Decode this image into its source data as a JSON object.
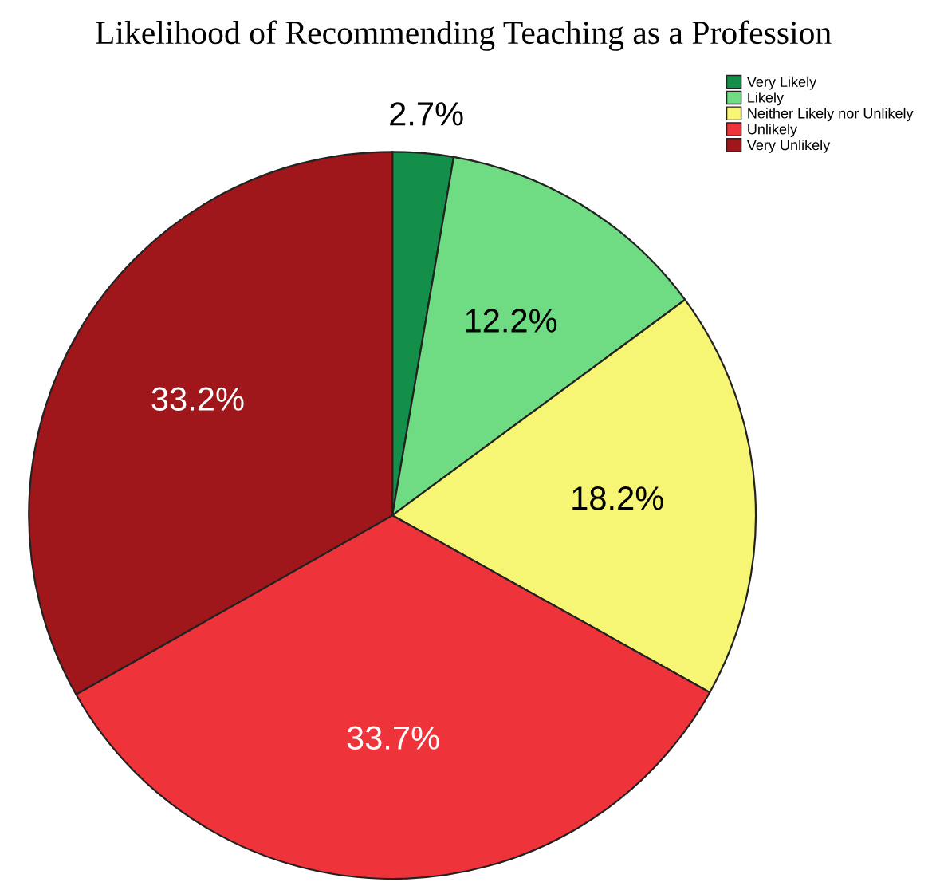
{
  "chart_data": {
    "type": "pie",
    "title": "Likelihood of Recommending Teaching as a Profession",
    "categories": [
      "Very Likely",
      "Likely",
      "Neither Likely nor Unlikely",
      "Unlikely",
      "Very Unlikely"
    ],
    "values": [
      2.7,
      12.2,
      18.2,
      33.7,
      33.2
    ],
    "colors": [
      "#138f4a",
      "#6fdc84",
      "#f7f574",
      "#ef333a",
      "#a0171b"
    ],
    "value_labels": [
      "2.7%",
      "12.2%",
      "18.2%",
      "33.7%",
      "33.2%"
    ],
    "legend": "top right"
  }
}
